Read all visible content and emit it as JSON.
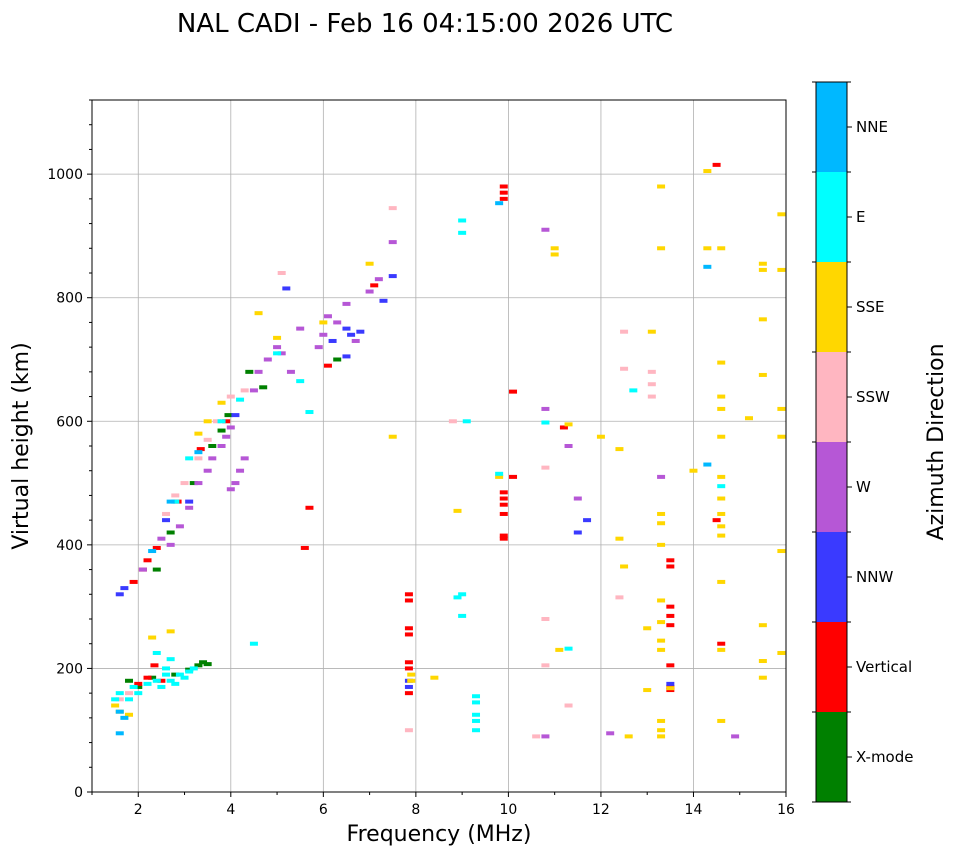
{
  "chart_data": {
    "type": "scatter",
    "title": "NAL CADI - Feb 16 04:15:00 2026 UTC",
    "xlabel": "Frequency (MHz)",
    "ylabel": "Virtual height (km)",
    "xlim": [
      1,
      16
    ],
    "ylim": [
      0,
      1120
    ],
    "xticks": [
      2,
      4,
      6,
      8,
      10,
      12,
      14,
      16
    ],
    "yticks": [
      0,
      200,
      400,
      600,
      800,
      1000
    ],
    "grid": true,
    "colorbar": {
      "label": "Azimuth Direction",
      "position": "right",
      "categories": [
        {
          "name": "X-mode",
          "color": "#008000"
        },
        {
          "name": "Vertical",
          "color": "#ff0000"
        },
        {
          "name": "NNW",
          "color": "#3a3aff"
        },
        {
          "name": "W",
          "color": "#b657d6"
        },
        {
          "name": "SSW",
          "color": "#ffb6c1"
        },
        {
          "name": "SSE",
          "color": "#ffd700"
        },
        {
          "name": "E",
          "color": "#00ffff"
        },
        {
          "name": "NNE",
          "color": "#00b8ff"
        }
      ]
    },
    "series": [
      {
        "name": "X-mode",
        "points": [
          [
            2.0,
            170
          ],
          [
            2.3,
            185
          ],
          [
            2.8,
            190
          ],
          [
            3.1,
            198
          ],
          [
            3.3,
            205
          ],
          [
            3.4,
            210
          ],
          [
            3.5,
            207
          ],
          [
            2.4,
            360
          ],
          [
            2.7,
            420
          ],
          [
            3.2,
            500
          ],
          [
            3.6,
            560
          ],
          [
            3.8,
            585
          ],
          [
            3.95,
            610
          ],
          [
            4.4,
            680
          ],
          [
            4.7,
            655
          ],
          [
            6.3,
            700
          ],
          [
            1.8,
            180
          ]
        ]
      },
      {
        "name": "Vertical",
        "points": [
          [
            1.9,
            340
          ],
          [
            2.1,
            360
          ],
          [
            2.2,
            375
          ],
          [
            2.4,
            395
          ],
          [
            2.0,
            175
          ],
          [
            2.2,
            185
          ],
          [
            2.35,
            205
          ],
          [
            2.5,
            180
          ],
          [
            2.85,
            470
          ],
          [
            3.35,
            555
          ],
          [
            3.9,
            600
          ],
          [
            5.6,
            395
          ],
          [
            5.7,
            460
          ],
          [
            6.1,
            690
          ],
          [
            7.1,
            820
          ],
          [
            7.85,
            160
          ],
          [
            7.85,
            200
          ],
          [
            7.85,
            210
          ],
          [
            7.85,
            255
          ],
          [
            7.85,
            265
          ],
          [
            7.85,
            310
          ],
          [
            7.85,
            320
          ],
          [
            9.9,
            410
          ],
          [
            9.9,
            415
          ],
          [
            9.9,
            450
          ],
          [
            9.9,
            465
          ],
          [
            9.9,
            475
          ],
          [
            9.9,
            485
          ],
          [
            9.9,
            960
          ],
          [
            9.9,
            970
          ],
          [
            9.9,
            980
          ],
          [
            10.1,
            510
          ],
          [
            10.1,
            648
          ],
          [
            11.2,
            590
          ],
          [
            13.5,
            165
          ],
          [
            13.5,
            170
          ],
          [
            13.5,
            205
          ],
          [
            13.5,
            270
          ],
          [
            13.5,
            285
          ],
          [
            13.5,
            300
          ],
          [
            13.5,
            365
          ],
          [
            13.5,
            375
          ],
          [
            14.5,
            440
          ],
          [
            14.5,
            1015
          ],
          [
            14.6,
            240
          ]
        ]
      },
      {
        "name": "NNW",
        "points": [
          [
            1.6,
            320
          ],
          [
            1.7,
            330
          ],
          [
            2.6,
            440
          ],
          [
            3.1,
            470
          ],
          [
            4.1,
            610
          ],
          [
            5.2,
            815
          ],
          [
            6.2,
            730
          ],
          [
            6.5,
            705
          ],
          [
            6.5,
            750
          ],
          [
            6.6,
            740
          ],
          [
            6.8,
            745
          ],
          [
            7.3,
            795
          ],
          [
            7.5,
            835
          ],
          [
            7.85,
            170
          ],
          [
            7.85,
            180
          ],
          [
            11.7,
            440
          ],
          [
            11.5,
            420
          ],
          [
            13.5,
            175
          ]
        ]
      },
      {
        "name": "W",
        "points": [
          [
            2.1,
            360
          ],
          [
            2.5,
            410
          ],
          [
            2.7,
            400
          ],
          [
            2.9,
            430
          ],
          [
            3.1,
            460
          ],
          [
            3.3,
            500
          ],
          [
            3.5,
            520
          ],
          [
            3.6,
            540
          ],
          [
            3.8,
            560
          ],
          [
            3.9,
            575
          ],
          [
            4.0,
            490
          ],
          [
            4.1,
            500
          ],
          [
            4.2,
            520
          ],
          [
            4.3,
            540
          ],
          [
            4.0,
            590
          ],
          [
            4.5,
            650
          ],
          [
            4.6,
            680
          ],
          [
            4.8,
            700
          ],
          [
            5.0,
            720
          ],
          [
            5.1,
            710
          ],
          [
            5.3,
            680
          ],
          [
            5.5,
            750
          ],
          [
            5.9,
            720
          ],
          [
            6.0,
            740
          ],
          [
            6.1,
            770
          ],
          [
            6.3,
            760
          ],
          [
            6.5,
            790
          ],
          [
            6.7,
            730
          ],
          [
            7.0,
            810
          ],
          [
            7.2,
            830
          ],
          [
            7.5,
            890
          ],
          [
            10.8,
            620
          ],
          [
            10.8,
            910
          ],
          [
            11.3,
            560
          ],
          [
            11.5,
            475
          ],
          [
            10.8,
            90
          ],
          [
            12.2,
            95
          ],
          [
            13.3,
            510
          ],
          [
            14.9,
            90
          ]
        ]
      },
      {
        "name": "SSW",
        "points": [
          [
            1.6,
            150
          ],
          [
            1.8,
            160
          ],
          [
            2.6,
            450
          ],
          [
            2.8,
            480
          ],
          [
            3.0,
            500
          ],
          [
            3.3,
            540
          ],
          [
            3.5,
            570
          ],
          [
            3.7,
            600
          ],
          [
            4.0,
            640
          ],
          [
            4.3,
            650
          ],
          [
            5.1,
            840
          ],
          [
            7.5,
            945
          ],
          [
            7.85,
            100
          ],
          [
            8.8,
            600
          ],
          [
            10.6,
            90
          ],
          [
            10.8,
            205
          ],
          [
            10.8,
            280
          ],
          [
            10.8,
            525
          ],
          [
            11.3,
            140
          ],
          [
            12.4,
            315
          ],
          [
            12.5,
            685
          ],
          [
            12.5,
            745
          ],
          [
            13.1,
            640
          ],
          [
            13.1,
            660
          ],
          [
            13.1,
            680
          ]
        ]
      },
      {
        "name": "SSE",
        "points": [
          [
            1.5,
            140
          ],
          [
            1.6,
            130
          ],
          [
            1.8,
            125
          ],
          [
            2.3,
            250
          ],
          [
            2.7,
            260
          ],
          [
            3.3,
            580
          ],
          [
            3.5,
            600
          ],
          [
            3.8,
            630
          ],
          [
            4.6,
            775
          ],
          [
            5.0,
            735
          ],
          [
            6.0,
            760
          ],
          [
            7.0,
            855
          ],
          [
            7.5,
            575
          ],
          [
            7.9,
            190
          ],
          [
            7.9,
            180
          ],
          [
            8.4,
            185
          ],
          [
            8.9,
            455
          ],
          [
            9.8,
            510
          ],
          [
            11.0,
            870
          ],
          [
            11.0,
            880
          ],
          [
            11.1,
            230
          ],
          [
            11.3,
            595
          ],
          [
            12.0,
            575
          ],
          [
            12.4,
            555
          ],
          [
            12.4,
            410
          ],
          [
            12.5,
            365
          ],
          [
            12.6,
            90
          ],
          [
            13.0,
            165
          ],
          [
            13.0,
            265
          ],
          [
            13.1,
            745
          ],
          [
            13.3,
            90
          ],
          [
            13.3,
            100
          ],
          [
            13.3,
            115
          ],
          [
            13.3,
            230
          ],
          [
            13.3,
            245
          ],
          [
            13.3,
            275
          ],
          [
            13.3,
            310
          ],
          [
            13.3,
            400
          ],
          [
            13.3,
            435
          ],
          [
            13.3,
            450
          ],
          [
            13.3,
            980
          ],
          [
            13.3,
            880
          ],
          [
            13.5,
            168
          ],
          [
            14.0,
            520
          ],
          [
            14.3,
            880
          ],
          [
            14.3,
            1005
          ],
          [
            14.6,
            115
          ],
          [
            14.6,
            230
          ],
          [
            14.6,
            340
          ],
          [
            14.6,
            415
          ],
          [
            14.6,
            430
          ],
          [
            14.6,
            450
          ],
          [
            14.6,
            475
          ],
          [
            14.6,
            510
          ],
          [
            14.6,
            575
          ],
          [
            14.6,
            620
          ],
          [
            14.6,
            640
          ],
          [
            14.6,
            695
          ],
          [
            14.6,
            880
          ],
          [
            15.2,
            605
          ],
          [
            15.5,
            185
          ],
          [
            15.5,
            212
          ],
          [
            15.5,
            270
          ],
          [
            15.5,
            675
          ],
          [
            15.5,
            765
          ],
          [
            15.5,
            845
          ],
          [
            15.5,
            855
          ],
          [
            15.9,
            225
          ],
          [
            15.9,
            390
          ],
          [
            15.9,
            575
          ],
          [
            15.9,
            620
          ],
          [
            15.9,
            845
          ],
          [
            15.9,
            935
          ]
        ]
      },
      {
        "name": "E",
        "points": [
          [
            1.5,
            150
          ],
          [
            1.6,
            160
          ],
          [
            1.8,
            150
          ],
          [
            1.9,
            170
          ],
          [
            2.0,
            160
          ],
          [
            2.2,
            175
          ],
          [
            2.4,
            180
          ],
          [
            2.5,
            170
          ],
          [
            2.6,
            190
          ],
          [
            2.7,
            180
          ],
          [
            2.8,
            175
          ],
          [
            2.9,
            190
          ],
          [
            3.0,
            185
          ],
          [
            3.1,
            195
          ],
          [
            3.2,
            200
          ],
          [
            2.6,
            200
          ],
          [
            2.7,
            215
          ],
          [
            2.4,
            225
          ],
          [
            2.8,
            470
          ],
          [
            3.1,
            540
          ],
          [
            3.8,
            600
          ],
          [
            4.2,
            635
          ],
          [
            4.5,
            240
          ],
          [
            5.0,
            710
          ],
          [
            5.5,
            665
          ],
          [
            5.7,
            615
          ],
          [
            9.0,
            905
          ],
          [
            9.0,
            925
          ],
          [
            8.9,
            315
          ],
          [
            9.0,
            320
          ],
          [
            9.0,
            285
          ],
          [
            9.1,
            600
          ],
          [
            9.3,
            100
          ],
          [
            9.3,
            115
          ],
          [
            9.3,
            125
          ],
          [
            9.3,
            145
          ],
          [
            9.3,
            155
          ],
          [
            9.8,
            515
          ],
          [
            10.8,
            598
          ],
          [
            11.3,
            232
          ],
          [
            12.7,
            650
          ],
          [
            14.6,
            495
          ]
        ]
      },
      {
        "name": "NNE",
        "points": [
          [
            1.6,
            95
          ],
          [
            1.7,
            120
          ],
          [
            1.6,
            130
          ],
          [
            2.3,
            390
          ],
          [
            2.7,
            470
          ],
          [
            3.3,
            550
          ],
          [
            9.8,
            953
          ],
          [
            14.3,
            530
          ],
          [
            14.3,
            850
          ]
        ]
      }
    ]
  }
}
